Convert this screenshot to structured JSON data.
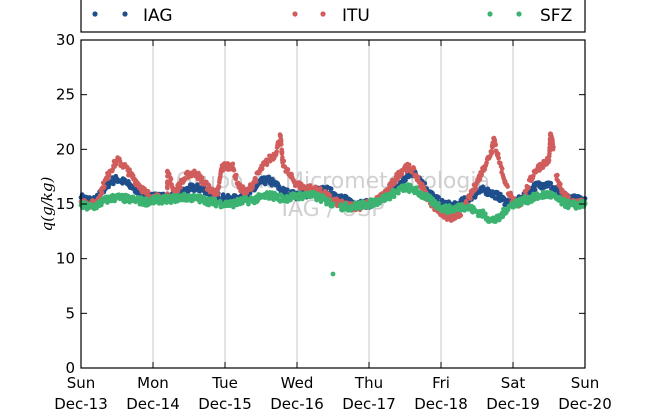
{
  "chart_data": {
    "type": "scatter",
    "ylabel": "q(g/kg)",
    "ylim": [
      0,
      30
    ],
    "yticks": [
      0,
      5,
      10,
      15,
      20,
      25,
      30
    ],
    "xlim": [
      0,
      7
    ],
    "x_unit": "days from Sun Dec-13 00:00",
    "xticks": [
      {
        "day": "Sun",
        "date": "Dec-13"
      },
      {
        "day": "Mon",
        "date": "Dec-14"
      },
      {
        "day": "Tue",
        "date": "Dec-15"
      },
      {
        "day": "Wed",
        "date": "Dec-16"
      },
      {
        "day": "Thu",
        "date": "Dec-17"
      },
      {
        "day": "Fri",
        "date": "Dec-18"
      },
      {
        "day": "Sat",
        "date": "Dec-19"
      },
      {
        "day": "Sun",
        "date": "Dec-20"
      }
    ],
    "grid": "vertical",
    "legend_position": "top",
    "watermark": [
      "Grupo de Micrometeorologia",
      "IAG / USP"
    ],
    "series": [
      {
        "name": "IAG",
        "color": "#1f4e8c",
        "points": [
          [
            0.0,
            15.6
          ],
          [
            0.1,
            15.4
          ],
          [
            0.2,
            15.3
          ],
          [
            0.3,
            16.2
          ],
          [
            0.4,
            17.0
          ],
          [
            0.5,
            17.3
          ],
          [
            0.6,
            17.0
          ],
          [
            0.7,
            16.6
          ],
          [
            0.8,
            16.2
          ],
          [
            0.9,
            15.9
          ],
          [
            1.0,
            15.7
          ],
          [
            1.1,
            15.6
          ],
          [
            1.2,
            15.6
          ],
          [
            1.3,
            15.7
          ],
          [
            1.4,
            16.0
          ],
          [
            1.5,
            16.4
          ],
          [
            1.6,
            16.5
          ],
          [
            1.7,
            16.3
          ],
          [
            1.8,
            16.0
          ],
          [
            1.9,
            15.7
          ],
          [
            2.0,
            15.5
          ],
          [
            2.1,
            15.4
          ],
          [
            2.2,
            15.6
          ],
          [
            2.3,
            15.8
          ],
          [
            2.4,
            16.3
          ],
          [
            2.5,
            17.0
          ],
          [
            2.6,
            17.2
          ],
          [
            2.7,
            16.8
          ],
          [
            2.8,
            16.2
          ],
          [
            2.9,
            15.9
          ],
          [
            3.0,
            15.8
          ],
          [
            3.1,
            15.9
          ],
          [
            3.2,
            16.0
          ],
          [
            3.3,
            16.2
          ],
          [
            3.4,
            16.3
          ],
          [
            3.5,
            16.0
          ],
          [
            3.6,
            15.6
          ],
          [
            3.7,
            15.3
          ],
          [
            3.8,
            15.1
          ],
          [
            3.9,
            15.0
          ],
          [
            4.0,
            15.0
          ],
          [
            4.1,
            15.2
          ],
          [
            4.2,
            15.5
          ],
          [
            4.3,
            16.0
          ],
          [
            4.4,
            16.6
          ],
          [
            4.5,
            17.3
          ],
          [
            4.6,
            17.9
          ],
          [
            4.7,
            17.4
          ],
          [
            4.8,
            16.4
          ],
          [
            4.9,
            15.6
          ],
          [
            5.0,
            15.1
          ],
          [
            5.1,
            14.9
          ],
          [
            5.2,
            14.8
          ],
          [
            5.3,
            15.2
          ],
          [
            5.4,
            15.6
          ],
          [
            5.5,
            16.0
          ],
          [
            5.6,
            16.3
          ],
          [
            5.7,
            16.0
          ],
          [
            5.8,
            15.7
          ],
          [
            5.9,
            15.2
          ],
          [
            6.0,
            15.1
          ],
          [
            6.1,
            15.4
          ],
          [
            6.2,
            16.0
          ],
          [
            6.3,
            16.6
          ],
          [
            6.4,
            16.8
          ],
          [
            6.5,
            16.8
          ],
          [
            6.6,
            16.2
          ],
          [
            6.7,
            15.8
          ],
          [
            6.8,
            15.5
          ],
          [
            6.9,
            15.4
          ],
          [
            7.0,
            15.5
          ]
        ]
      },
      {
        "name": "ITU",
        "color": "#d05c5c",
        "points": [
          [
            0.0,
            15.2
          ],
          [
            0.1,
            15.0
          ],
          [
            0.2,
            15.0
          ],
          [
            0.3,
            16.5
          ],
          [
            0.4,
            18.0
          ],
          [
            0.5,
            19.0
          ],
          [
            0.6,
            18.5
          ],
          [
            0.7,
            17.6
          ],
          [
            0.8,
            16.8
          ],
          [
            0.9,
            16.0
          ],
          [
            1.0,
            15.6
          ],
          [
            1.1,
            15.5
          ],
          [
            1.2,
            15.5
          ],
          [
            1.3,
            16.0
          ],
          [
            1.4,
            17.0
          ],
          [
            1.5,
            17.8
          ],
          [
            1.6,
            17.8
          ],
          [
            1.7,
            17.0
          ],
          [
            1.8,
            16.3
          ],
          [
            1.9,
            15.9
          ],
          [
            1.95,
            18.2
          ],
          [
            2.0,
            18.5
          ],
          [
            2.1,
            18.5
          ],
          [
            2.2,
            16.5
          ],
          [
            2.3,
            16.0
          ],
          [
            2.4,
            17.0
          ],
          [
            2.5,
            18.2
          ],
          [
            2.6,
            19.0
          ],
          [
            2.7,
            19.6
          ],
          [
            2.8,
            18.8
          ],
          [
            2.9,
            17.6
          ],
          [
            3.0,
            16.8
          ],
          [
            3.1,
            16.5
          ],
          [
            3.2,
            16.4
          ],
          [
            3.3,
            16.2
          ],
          [
            3.4,
            15.8
          ],
          [
            3.5,
            15.3
          ],
          [
            3.6,
            15.0
          ],
          [
            3.7,
            14.8
          ],
          [
            3.8,
            14.8
          ],
          [
            3.9,
            14.8
          ],
          [
            4.0,
            15.0
          ],
          [
            4.1,
            15.3
          ],
          [
            4.2,
            15.8
          ],
          [
            4.3,
            16.6
          ],
          [
            4.4,
            17.6
          ],
          [
            4.5,
            18.4
          ],
          [
            4.6,
            18.2
          ],
          [
            4.7,
            17.0
          ],
          [
            4.8,
            15.8
          ],
          [
            4.9,
            14.8
          ],
          [
            5.0,
            14.2
          ],
          [
            5.1,
            13.8
          ],
          [
            5.2,
            13.7
          ],
          [
            5.3,
            14.5
          ],
          [
            5.4,
            15.6
          ],
          [
            5.5,
            17.0
          ],
          [
            5.6,
            18.4
          ],
          [
            5.7,
            19.8
          ],
          [
            5.8,
            19.2
          ],
          [
            5.9,
            16.8
          ],
          [
            6.0,
            15.2
          ],
          [
            6.1,
            15.0
          ],
          [
            6.2,
            16.5
          ],
          [
            6.3,
            18.0
          ],
          [
            6.4,
            18.6
          ],
          [
            6.5,
            19.0
          ],
          [
            6.6,
            17.6
          ],
          [
            6.7,
            16.0
          ],
          [
            6.8,
            15.2
          ],
          [
            6.9,
            15.0
          ],
          [
            7.0,
            15.1
          ],
          [
            1.2,
            18.0
          ],
          [
            2.77,
            21.2
          ],
          [
            5.73,
            21.0
          ],
          [
            6.52,
            21.3
          ],
          [
            6.56,
            20.2
          ]
        ]
      },
      {
        "name": "SFZ",
        "color": "#3cb371",
        "points": [
          [
            0.0,
            14.9
          ],
          [
            0.1,
            14.7
          ],
          [
            0.2,
            14.8
          ],
          [
            0.3,
            15.2
          ],
          [
            0.4,
            15.5
          ],
          [
            0.5,
            15.6
          ],
          [
            0.6,
            15.5
          ],
          [
            0.7,
            15.4
          ],
          [
            0.8,
            15.3
          ],
          [
            0.9,
            15.2
          ],
          [
            1.0,
            15.3
          ],
          [
            1.1,
            15.4
          ],
          [
            1.2,
            15.4
          ],
          [
            1.3,
            15.5
          ],
          [
            1.4,
            15.6
          ],
          [
            1.5,
            15.6
          ],
          [
            1.6,
            15.5
          ],
          [
            1.7,
            15.4
          ],
          [
            1.8,
            15.2
          ],
          [
            1.9,
            15.1
          ],
          [
            2.0,
            15.0
          ],
          [
            2.1,
            15.0
          ],
          [
            2.2,
            15.2
          ],
          [
            2.3,
            15.3
          ],
          [
            2.4,
            15.4
          ],
          [
            2.5,
            15.6
          ],
          [
            2.6,
            15.8
          ],
          [
            2.7,
            15.7
          ],
          [
            2.8,
            15.5
          ],
          [
            2.9,
            15.6
          ],
          [
            3.0,
            15.7
          ],
          [
            3.1,
            15.8
          ],
          [
            3.2,
            15.8
          ],
          [
            3.3,
            15.6
          ],
          [
            3.4,
            15.3
          ],
          [
            3.5,
            15.0
          ],
          [
            3.6,
            14.8
          ],
          [
            3.7,
            14.7
          ],
          [
            3.8,
            14.8
          ],
          [
            3.9,
            14.9
          ],
          [
            4.0,
            15.0
          ],
          [
            4.1,
            15.2
          ],
          [
            4.2,
            15.5
          ],
          [
            4.3,
            15.8
          ],
          [
            4.4,
            16.2
          ],
          [
            4.5,
            16.5
          ],
          [
            4.6,
            16.4
          ],
          [
            4.7,
            16.0
          ],
          [
            4.8,
            15.6
          ],
          [
            4.9,
            15.1
          ],
          [
            5.0,
            14.7
          ],
          [
            5.1,
            14.5
          ],
          [
            5.2,
            14.6
          ],
          [
            5.3,
            14.8
          ],
          [
            5.4,
            14.6
          ],
          [
            5.5,
            14.3
          ],
          [
            5.6,
            14.0
          ],
          [
            5.7,
            13.5
          ],
          [
            5.8,
            13.6
          ],
          [
            5.9,
            14.5
          ],
          [
            6.0,
            15.0
          ],
          [
            6.1,
            15.2
          ],
          [
            6.2,
            15.4
          ],
          [
            6.3,
            15.6
          ],
          [
            6.4,
            15.8
          ],
          [
            6.5,
            15.9
          ],
          [
            6.6,
            15.5
          ],
          [
            6.7,
            15.1
          ],
          [
            6.8,
            14.9
          ],
          [
            6.9,
            14.9
          ],
          [
            7.0,
            15.0
          ],
          [
            3.5,
            8.6
          ]
        ]
      }
    ]
  }
}
